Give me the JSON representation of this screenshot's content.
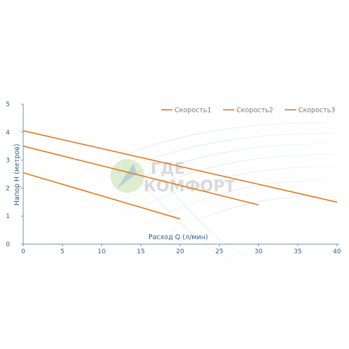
{
  "watermark": {
    "line1": "ГДЕ",
    "line2": "КОМФОРТ"
  },
  "colors": {
    "series": "#e07a22",
    "axis": "#6f8fae",
    "grid": "#dbe5ee",
    "text": "#2f5f87"
  },
  "chart_data": {
    "type": "line",
    "title": "",
    "xlabel": "Расход Q (л/мин)",
    "ylabel": "Напор Н (метров)",
    "xlim": [
      0,
      40
    ],
    "ylim": [
      0,
      5
    ],
    "xticks": [
      0,
      5,
      10,
      15,
      20,
      25,
      30,
      35,
      40
    ],
    "yticks": [
      0,
      1,
      2,
      3,
      4,
      5
    ],
    "grid": false,
    "legend_position": "top-right",
    "series": [
      {
        "name": "Скорость1",
        "x": [
          0,
          20
        ],
        "y": [
          2.55,
          0.9
        ]
      },
      {
        "name": "Скорость2",
        "x": [
          0,
          30
        ],
        "y": [
          3.5,
          1.4
        ]
      },
      {
        "name": "Скорость3",
        "x": [
          0,
          40
        ],
        "y": [
          4.05,
          1.5
        ]
      }
    ]
  }
}
